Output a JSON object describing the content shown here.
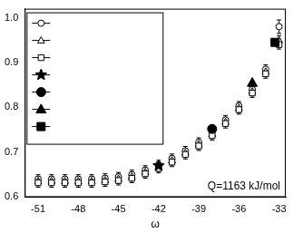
{
  "chart_data": {
    "type": "scatter",
    "x_label": "ω",
    "annotation": "Q=1163 kJ/mol",
    "xlim": [
      -52,
      -32.5
    ],
    "xticks": [
      -51,
      -48,
      -45,
      -42,
      -39,
      -36,
      -33
    ],
    "ylim": [
      0.6,
      1.02
    ],
    "yticks": [
      0.6,
      0.7,
      0.8,
      0.9,
      {
        "value": 1,
        "label": "1.0"
      }
    ],
    "grid": false,
    "legend": "top-left",
    "series": [
      {
        "marker": "circle_open",
        "color": "#000000",
        "x": [
          -51,
          -50,
          -49,
          -48,
          -47,
          -46,
          -45,
          -44,
          -43,
          -42,
          -41,
          -40,
          -39,
          -38,
          -37,
          -36,
          -35,
          -34,
          -33
        ],
        "values": [
          0.64,
          0.64,
          0.64,
          0.64,
          0.64,
          0.642,
          0.645,
          0.65,
          0.66,
          0.672,
          0.686,
          0.703,
          0.722,
          0.745,
          0.772,
          0.803,
          0.84,
          0.885,
          0.98
        ],
        "errors": [
          0.01,
          0.01,
          0.01,
          0.01,
          0.01,
          0.01,
          0.01,
          0.01,
          0.01,
          0.01,
          0.01,
          0.01,
          0.01,
          0.01,
          0.01,
          0.01,
          0.01,
          0.01,
          0.015
        ]
      },
      {
        "marker": "triangle_open",
        "color": "#000000",
        "x": [
          -51,
          -50,
          -49,
          -48,
          -47,
          -46,
          -45,
          -44,
          -43,
          -42,
          -41,
          -40,
          -39,
          -38,
          -37,
          -36,
          -35,
          -34,
          -33
        ],
        "values": [
          0.636,
          0.636,
          0.636,
          0.636,
          0.636,
          0.638,
          0.641,
          0.646,
          0.656,
          0.668,
          0.682,
          0.699,
          0.718,
          0.741,
          0.768,
          0.799,
          0.836,
          0.88,
          0.95
        ],
        "errors": [
          0.01,
          0.01,
          0.01,
          0.01,
          0.01,
          0.01,
          0.01,
          0.01,
          0.01,
          0.01,
          0.01,
          0.01,
          0.01,
          0.01,
          0.01,
          0.01,
          0.01,
          0.01,
          0.01
        ]
      },
      {
        "marker": "square_open",
        "color": "#000000",
        "x": [
          -51,
          -50,
          -49,
          -48,
          -47,
          -46,
          -45,
          -44,
          -43,
          -42,
          -41,
          -40,
          -39,
          -38,
          -37,
          -36,
          -35,
          -34,
          -33
        ],
        "values": [
          0.632,
          0.632,
          0.632,
          0.632,
          0.632,
          0.634,
          0.637,
          0.642,
          0.652,
          0.664,
          0.678,
          0.695,
          0.714,
          0.737,
          0.764,
          0.795,
          0.832,
          0.875,
          0.94
        ],
        "errors": [
          0.01,
          0.01,
          0.01,
          0.01,
          0.01,
          0.01,
          0.01,
          0.01,
          0.01,
          0.01,
          0.01,
          0.01,
          0.01,
          0.01,
          0.01,
          0.01,
          0.01,
          0.01,
          0.01
        ]
      },
      {
        "marker": "star",
        "color": "#000000",
        "x": [
          -42
        ],
        "values": [
          0.67
        ]
      },
      {
        "marker": "circle",
        "color": "#000000",
        "x": [
          -38
        ],
        "values": [
          0.752
        ]
      },
      {
        "marker": "triangle",
        "color": "#000000",
        "x": [
          -35
        ],
        "values": [
          0.855
        ]
      },
      {
        "marker": "square",
        "color": "#000000",
        "x": [
          -33.3
        ],
        "values": [
          0.945
        ]
      }
    ]
  }
}
